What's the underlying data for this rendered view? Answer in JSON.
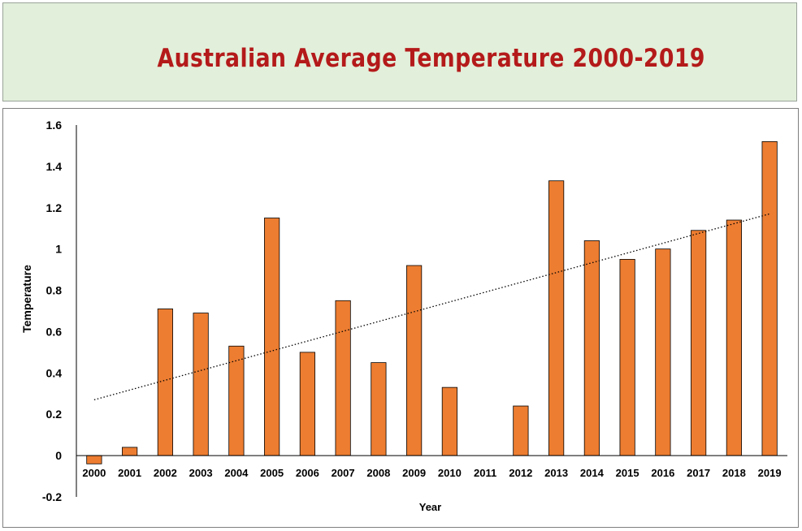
{
  "title": "Australian Average Temperature 2000-2019",
  "chart_data": {
    "type": "bar",
    "title": "Australian Average Temperature 2000-2019",
    "xlabel": "Year",
    "ylabel": "Temperature",
    "categories": [
      "2000",
      "2001",
      "2002",
      "2003",
      "2004",
      "2005",
      "2006",
      "2007",
      "2008",
      "2009",
      "2010",
      "2011",
      "2012",
      "2013",
      "2014",
      "2015",
      "2016",
      "2017",
      "2018",
      "2019"
    ],
    "values": [
      -0.04,
      0.04,
      0.71,
      0.69,
      0.53,
      1.15,
      0.5,
      0.75,
      0.45,
      0.92,
      0.33,
      0.0,
      0.24,
      1.33,
      1.04,
      0.95,
      1.0,
      1.09,
      1.14,
      1.52
    ],
    "ylim": [
      -0.2,
      1.6
    ],
    "yticks": [
      -0.2,
      0,
      0.2,
      0.4,
      0.6,
      0.8,
      1,
      1.2,
      1.4,
      1.6
    ],
    "ytick_labels": [
      "-0.2",
      "0",
      "0.2",
      "0.4",
      "0.6",
      "0.8",
      "1",
      "1.2",
      "1.4",
      "1.6"
    ],
    "bar_color": "#ed7d31",
    "trendline": {
      "type": "linear",
      "style": "dotted",
      "start": 0.27,
      "end": 1.17
    },
    "grid": false
  }
}
